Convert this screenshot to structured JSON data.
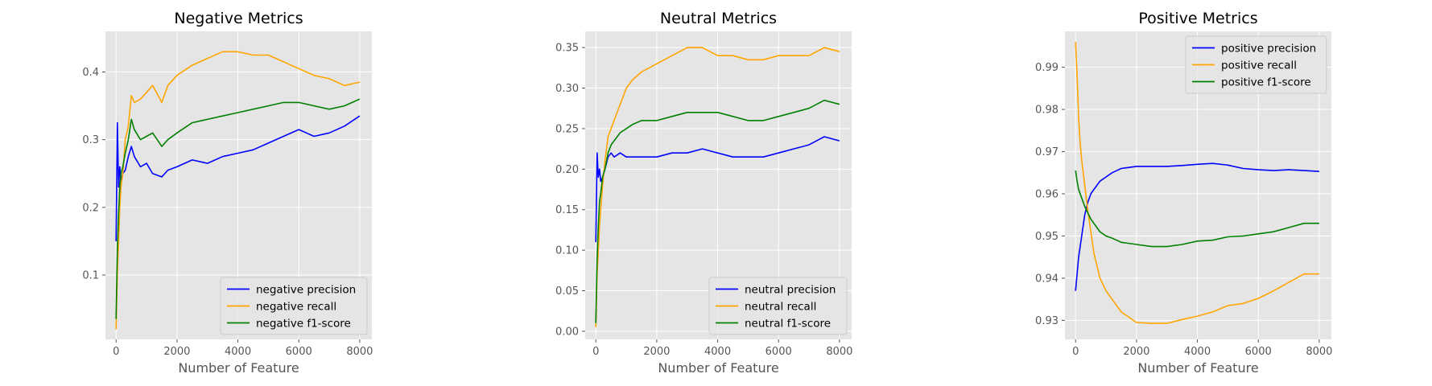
{
  "chart_data": [
    {
      "type": "line",
      "title": "Negative Metrics",
      "xlabel": "Number of Feature",
      "ylabel": "",
      "xlim": [
        -350,
        8400
      ],
      "ylim": [
        0.005,
        0.46
      ],
      "xticks": [
        "0",
        "2000",
        "4000",
        "6000",
        "8000"
      ],
      "yticks": [
        "0.1",
        "0.2",
        "0.3",
        "0.4"
      ],
      "grid": true,
      "legend_position": "lower right",
      "series": [
        {
          "name": "negative precision",
          "color": "#0000ff",
          "x": [
            0,
            40,
            80,
            120,
            160,
            220,
            300,
            400,
            500,
            600,
            800,
            1000,
            1200,
            1500,
            1700,
            2000,
            2500,
            3000,
            3500,
            4000,
            4500,
            5000,
            5500,
            6000,
            6500,
            7000,
            7500,
            8000
          ],
          "y": [
            0.15,
            0.325,
            0.23,
            0.26,
            0.24,
            0.25,
            0.255,
            0.275,
            0.29,
            0.275,
            0.26,
            0.265,
            0.25,
            0.245,
            0.255,
            0.26,
            0.27,
            0.265,
            0.275,
            0.28,
            0.285,
            0.295,
            0.305,
            0.315,
            0.305,
            0.31,
            0.32,
            0.335
          ]
        },
        {
          "name": "negative recall",
          "color": "#ffa500",
          "x": [
            0,
            40,
            80,
            120,
            160,
            220,
            300,
            400,
            500,
            600,
            800,
            1000,
            1200,
            1500,
            1700,
            2000,
            2500,
            3000,
            3500,
            4000,
            4500,
            5000,
            5500,
            6000,
            6500,
            7000,
            7500,
            8000
          ],
          "y": [
            0.02,
            0.1,
            0.15,
            0.2,
            0.23,
            0.25,
            0.3,
            0.32,
            0.365,
            0.355,
            0.36,
            0.37,
            0.38,
            0.355,
            0.38,
            0.395,
            0.41,
            0.42,
            0.43,
            0.43,
            0.425,
            0.425,
            0.415,
            0.405,
            0.395,
            0.39,
            0.38,
            0.385
          ]
        },
        {
          "name": "negative f1-score",
          "color": "#008000",
          "x": [
            0,
            40,
            80,
            120,
            160,
            220,
            300,
            400,
            500,
            600,
            800,
            1000,
            1200,
            1500,
            1700,
            2000,
            2500,
            3000,
            3500,
            4000,
            4500,
            5000,
            5500,
            6000,
            6500,
            7000,
            7500,
            8000
          ],
          "y": [
            0.035,
            0.14,
            0.19,
            0.23,
            0.25,
            0.26,
            0.28,
            0.3,
            0.33,
            0.315,
            0.3,
            0.305,
            0.31,
            0.29,
            0.3,
            0.31,
            0.325,
            0.33,
            0.335,
            0.34,
            0.345,
            0.35,
            0.355,
            0.355,
            0.35,
            0.345,
            0.35,
            0.36
          ]
        }
      ]
    },
    {
      "type": "line",
      "title": "Neutral Metrics",
      "xlabel": "Number of Feature",
      "ylabel": "",
      "xlim": [
        -350,
        8400
      ],
      "ylim": [
        -0.01,
        0.37
      ],
      "xticks": [
        "0",
        "2000",
        "4000",
        "6000",
        "8000"
      ],
      "yticks": [
        "0.00",
        "0.05",
        "0.10",
        "0.15",
        "0.20",
        "0.25",
        "0.30",
        "0.35"
      ],
      "grid": true,
      "legend_position": "lower right",
      "series": [
        {
          "name": "neutral precision",
          "color": "#0000ff",
          "x": [
            0,
            40,
            80,
            120,
            160,
            220,
            300,
            400,
            500,
            600,
            800,
            1000,
            1200,
            1500,
            2000,
            2500,
            3000,
            3500,
            4000,
            4500,
            5000,
            5500,
            6000,
            6500,
            7000,
            7500,
            8000
          ],
          "y": [
            0.11,
            0.22,
            0.19,
            0.2,
            0.185,
            0.19,
            0.2,
            0.215,
            0.22,
            0.215,
            0.22,
            0.215,
            0.215,
            0.215,
            0.215,
            0.22,
            0.22,
            0.225,
            0.22,
            0.215,
            0.215,
            0.215,
            0.22,
            0.225,
            0.23,
            0.24,
            0.235
          ]
        },
        {
          "name": "neutral recall",
          "color": "#ffa500",
          "x": [
            0,
            40,
            80,
            120,
            160,
            220,
            300,
            400,
            500,
            600,
            800,
            1000,
            1200,
            1500,
            2000,
            2500,
            3000,
            3500,
            4000,
            4500,
            5000,
            5500,
            6000,
            6500,
            7000,
            7500,
            8000
          ],
          "y": [
            0.005,
            0.07,
            0.1,
            0.13,
            0.15,
            0.18,
            0.21,
            0.24,
            0.25,
            0.26,
            0.28,
            0.3,
            0.31,
            0.32,
            0.33,
            0.34,
            0.35,
            0.35,
            0.34,
            0.34,
            0.335,
            0.335,
            0.34,
            0.34,
            0.34,
            0.35,
            0.345
          ]
        },
        {
          "name": "neutral f1-score",
          "color": "#008000",
          "x": [
            0,
            40,
            80,
            120,
            160,
            220,
            300,
            400,
            500,
            600,
            800,
            1000,
            1200,
            1500,
            2000,
            2500,
            3000,
            3500,
            4000,
            4500,
            5000,
            5500,
            6000,
            6500,
            7000,
            7500,
            8000
          ],
          "y": [
            0.01,
            0.09,
            0.13,
            0.16,
            0.17,
            0.19,
            0.2,
            0.22,
            0.23,
            0.235,
            0.245,
            0.25,
            0.255,
            0.26,
            0.26,
            0.265,
            0.27,
            0.27,
            0.27,
            0.265,
            0.26,
            0.26,
            0.265,
            0.27,
            0.275,
            0.285,
            0.28
          ]
        }
      ]
    },
    {
      "type": "line",
      "title": "Positive Metrics",
      "xlabel": "Number of Feature",
      "ylabel": "",
      "xlim": [
        -350,
        8400
      ],
      "ylim": [
        0.9255,
        0.9985
      ],
      "xticks": [
        "0",
        "2000",
        "4000",
        "6000",
        "8000"
      ],
      "yticks": [
        "0.93",
        "0.94",
        "0.95",
        "0.96",
        "0.97",
        "0.98",
        "0.99"
      ],
      "grid": true,
      "legend_position": "upper right",
      "series": [
        {
          "name": "positive precision",
          "color": "#0000ff",
          "x": [
            0,
            50,
            100,
            200,
            300,
            400,
            500,
            600,
            700,
            800,
            1000,
            1200,
            1500,
            2000,
            2500,
            3000,
            3500,
            4000,
            4500,
            5000,
            5500,
            6000,
            6500,
            7000,
            7500,
            8000
          ],
          "y": [
            0.937,
            0.941,
            0.945,
            0.95,
            0.955,
            0.958,
            0.96,
            0.961,
            0.962,
            0.963,
            0.964,
            0.965,
            0.966,
            0.9665,
            0.9665,
            0.9665,
            0.9667,
            0.967,
            0.9672,
            0.9668,
            0.966,
            0.9657,
            0.9655,
            0.9657,
            0.9655,
            0.9653
          ]
        },
        {
          "name": "positive recall",
          "color": "#ffa500",
          "x": [
            0,
            50,
            100,
            150,
            200,
            300,
            400,
            500,
            600,
            700,
            800,
            1000,
            1200,
            1500,
            2000,
            2500,
            3000,
            3500,
            4000,
            4500,
            5000,
            5500,
            6000,
            6500,
            7000,
            7500,
            8000
          ],
          "y": [
            0.996,
            0.988,
            0.978,
            0.972,
            0.968,
            0.962,
            0.956,
            0.951,
            0.946,
            0.943,
            0.94,
            0.937,
            0.935,
            0.932,
            0.9295,
            0.9293,
            0.9293,
            0.9302,
            0.931,
            0.932,
            0.9335,
            0.934,
            0.9352,
            0.937,
            0.939,
            0.941,
            0.941
          ]
        },
        {
          "name": "positive f1-score",
          "color": "#008000",
          "x": [
            0,
            50,
            100,
            200,
            300,
            400,
            500,
            600,
            700,
            800,
            1000,
            1200,
            1500,
            2000,
            2500,
            3000,
            3500,
            4000,
            4500,
            5000,
            5500,
            6000,
            6500,
            7000,
            7500,
            8000
          ],
          "y": [
            0.9655,
            0.963,
            0.961,
            0.959,
            0.957,
            0.9555,
            0.954,
            0.953,
            0.952,
            0.951,
            0.95,
            0.9495,
            0.9485,
            0.948,
            0.9475,
            0.9475,
            0.948,
            0.9488,
            0.949,
            0.9498,
            0.95,
            0.9505,
            0.951,
            0.952,
            0.953,
            0.953
          ]
        }
      ]
    }
  ]
}
